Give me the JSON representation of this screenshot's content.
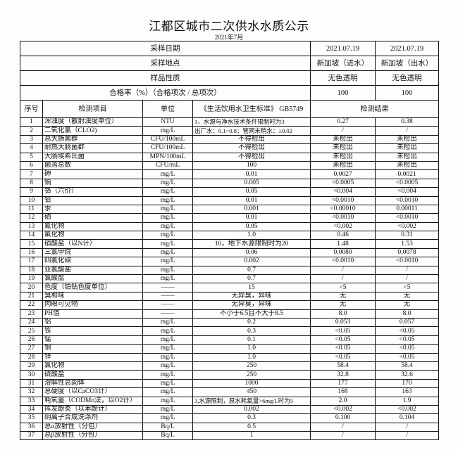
{
  "header": {
    "title": "江都区城市二次供水水质公示",
    "month": "2021年7月"
  },
  "meta": [
    {
      "label": "采样日期",
      "v1": "2021.07.19",
      "v2": "2021.07.19"
    },
    {
      "label": "采样地点",
      "v1": "新加坡（进水）",
      "v2": "新加坡（出水）"
    },
    {
      "label": "样品性质",
      "v1": "无色透明",
      "v2": "无色透明"
    },
    {
      "label": "合格率（%）（合格项次 / 总项次）",
      "v1": "100",
      "v2": "100"
    }
  ],
  "columns": {
    "no": "序号",
    "item": "检测项目",
    "unit": "单位",
    "standard": "《生活饮用水卫生标准》 GB5749",
    "result": "检测结果"
  },
  "rows": [
    {
      "no": "1",
      "item": "浑浊度（散射浊度单位）",
      "unit": "NTU",
      "std": "1，水源与净水技术条件限制时为3",
      "r1": "0.27",
      "r2": "0.38"
    },
    {
      "no": "2",
      "item": "二氧化氯（CLO2)",
      "unit": "mg/L",
      "std": "出厂水：0.1~0.8；管网末稍水：≥0.02",
      "r1": "/",
      "r2": "/"
    },
    {
      "no": "3",
      "item": "总大肠菌群",
      "unit": "CFU/100mL",
      "std": "不得检出",
      "r1": "未检出",
      "r2": "未检出"
    },
    {
      "no": "4",
      "item": "耐热大肠菌群",
      "unit": "CFU/100mL",
      "std": "不得检出",
      "r1": "未检出",
      "r2": "未检出"
    },
    {
      "no": "5",
      "item": "大肠埃希氏菌",
      "unit": "MPN/100mL",
      "std": "不得检出",
      "r1": "未检出",
      "r2": "未检出"
    },
    {
      "no": "6",
      "item": "菌落总数",
      "unit": "CFU/mL",
      "std": "100",
      "r1": "未检出",
      "r2": "未检出"
    },
    {
      "no": "7",
      "item": "砷",
      "unit": "mg/L",
      "std": "0.01",
      "r1": "0.0027",
      "r2": "0.0021"
    },
    {
      "no": "8",
      "item": "镉",
      "unit": "mg/L",
      "std": "0.005",
      "r1": "<0.0005",
      "r2": "<0.0005"
    },
    {
      "no": "9",
      "item": "铬（六价）",
      "unit": "mg/L",
      "std": "0.05",
      "r1": "<0.004",
      "r2": "<0.004"
    },
    {
      "no": "10",
      "item": "铅",
      "unit": "mg/L",
      "std": "0.01",
      "r1": "<0.0010",
      "r2": "<0.0010"
    },
    {
      "no": "11",
      "item": "汞",
      "unit": "mg/L",
      "std": "0.001",
      "r1": "<0.00010",
      "r2": "0.00011"
    },
    {
      "no": "12",
      "item": "硒",
      "unit": "mg/L",
      "std": "0.01",
      "r1": "<0.0010",
      "r2": "<0.0010"
    },
    {
      "no": "13",
      "item": "氰化物",
      "unit": "mg/L",
      "std": "0.05",
      "r1": "<0.002",
      "r2": "<0.002"
    },
    {
      "no": "14",
      "item": "氟化物",
      "unit": "mg/L",
      "std": "1.0",
      "r1": "0.46",
      "r2": "0.31"
    },
    {
      "no": "15",
      "item": "硝酸盐（以N计）",
      "unit": "mg/L",
      "std": "10，地下水源限制时为20",
      "r1": "1.48",
      "r2": "1.53"
    },
    {
      "no": "16",
      "item": "三氯甲烷",
      "unit": "mg/L",
      "std": "0.06",
      "r1": "0.0080",
      "r2": "0.0078"
    },
    {
      "no": "17",
      "item": "四氯化碳",
      "unit": "mg/L",
      "std": "0.002",
      "r1": "<0.0010",
      "r2": "<0.0010"
    },
    {
      "no": "18",
      "item": "亚氯酸盐",
      "unit": "mg/L",
      "std": "0.7",
      "r1": "/",
      "r2": "/"
    },
    {
      "no": "19",
      "item": "氯酸盐",
      "unit": "mg/L",
      "std": "0.7",
      "r1": "/",
      "r2": "/"
    },
    {
      "no": "20",
      "item": "色度（铂钴色度单位）",
      "unit": "——",
      "std": "15",
      "r1": "<5",
      "r2": "<5"
    },
    {
      "no": "21",
      "item": "臭和味",
      "unit": "——",
      "std": "无异臭，异味",
      "r1": "无",
      "r2": "无"
    },
    {
      "no": "22",
      "item": "肉眼可见物",
      "unit": "——",
      "std": "无异臭，异味",
      "r1": "无",
      "r2": "无"
    },
    {
      "no": "23",
      "item": "PH值",
      "unit": "——",
      "std": "不小于6.5且不大于8.5",
      "r1": "8.0",
      "r2": "8.0"
    },
    {
      "no": "24",
      "item": "铝",
      "unit": "mg/L",
      "std": "0.2",
      "r1": "0.053",
      "r2": "0.057"
    },
    {
      "no": "25",
      "item": "铁",
      "unit": "mg/L",
      "std": "0.3",
      "r1": "<0.05",
      "r2": "<0.05"
    },
    {
      "no": "26",
      "item": "锰",
      "unit": "mg/L",
      "std": "0.1",
      "r1": "<0.05",
      "r2": "<0.05"
    },
    {
      "no": "27",
      "item": "铜",
      "unit": "mg/L",
      "std": "1.0",
      "r1": "<0.05",
      "r2": "<0.05"
    },
    {
      "no": "28",
      "item": "锌",
      "unit": "mg/L",
      "std": "1.0",
      "r1": "<0.05",
      "r2": "<0.05"
    },
    {
      "no": "29",
      "item": "氯化物",
      "unit": "mg/L",
      "std": "250",
      "r1": "58.4",
      "r2": "58.4"
    },
    {
      "no": "30",
      "item": "硫酸盐",
      "unit": "mg/L",
      "std": "250",
      "r1": "32.8",
      "r2": "32.6"
    },
    {
      "no": "31",
      "item": "溶解性总固体",
      "unit": "mg/L",
      "std": "1000",
      "r1": "177",
      "r2": "170"
    },
    {
      "no": "32",
      "item": "总硬度（以CaCO3计）",
      "unit": "mg/L",
      "std": "450",
      "r1": "168",
      "r2": "163"
    },
    {
      "no": "33",
      "item": "耗氧量（CODMn法，以O2计）",
      "unit": "mg/L",
      "std": "3,水源限制，原水耗氧量>6mg/L时为5",
      "r1": "2.0",
      "r2": "1.9"
    },
    {
      "no": "34",
      "item": "挥发酚类（以苯酚计）",
      "unit": "mg/L",
      "std": "0.002",
      "r1": "<0.002",
      "r2": "<0.002"
    },
    {
      "no": "35",
      "item": "阴离子合成洗涤剂",
      "unit": "mg/L",
      "std": "0.3",
      "r1": "0.100",
      "r2": "0.104"
    },
    {
      "no": "36",
      "item": "总α放射性（分包）",
      "unit": "Bq/L",
      "std": "0.5",
      "r1": "/",
      "r2": "/"
    },
    {
      "no": "37",
      "item": "总β放射性（分包）",
      "unit": "Bq/L",
      "std": "1",
      "r1": "/",
      "r2": "/"
    }
  ]
}
